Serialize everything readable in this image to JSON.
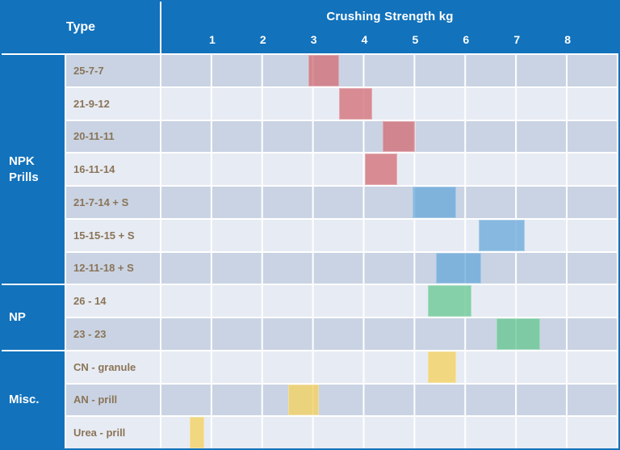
{
  "header": {
    "type_label": "Type",
    "axis_title": "Crushing Strength kg"
  },
  "colors": {
    "header_bg": "#1272BC",
    "header_text": "#FFFFFF",
    "outer_border": "#1272BC",
    "row_dark": "#C9D3E3",
    "row_light": "#E7EBF3",
    "grid_line": "#FFFFFF",
    "row_label_text": "#8A7458",
    "bar_red": "rgba(211,111,119,0.78)",
    "bar_blue": "rgba(108,171,218,0.78)",
    "bar_green": "rgba(105,200,148,0.78)",
    "bar_yellow": "rgba(243,210,103,0.82)"
  },
  "chart_data": {
    "type": "bar",
    "subtype": "horizontal-range-bars",
    "title": "Crushing Strength kg",
    "xlabel": "Crushing Strength kg",
    "ylabel": "Type",
    "x_range": [
      0,
      9
    ],
    "x_ticks": [
      "1",
      "2",
      "3",
      "4",
      "5",
      "6",
      "7",
      "8"
    ],
    "grid": true,
    "groups": [
      {
        "label": "NPK Prills",
        "rows": [
          {
            "label": "25-7-7",
            "range_kg": [
              2.9,
              3.5
            ],
            "color": "red"
          },
          {
            "label": "21-9-12",
            "range_kg": [
              3.5,
              4.15
            ],
            "color": "red"
          },
          {
            "label": "20-11-11",
            "range_kg": [
              4.35,
              5.0
            ],
            "color": "red"
          },
          {
            "label": "16-11-14",
            "range_kg": [
              4.0,
              4.65
            ],
            "color": "red"
          },
          {
            "label": "21-7-14 + S",
            "range_kg": [
              4.95,
              5.8
            ],
            "color": "blue"
          },
          {
            "label": "15-15-15 + S",
            "range_kg": [
              6.25,
              7.15
            ],
            "color": "blue"
          },
          {
            "label": "12-11-18 + S",
            "range_kg": [
              5.4,
              6.3
            ],
            "color": "blue"
          }
        ]
      },
      {
        "label": "NP",
        "rows": [
          {
            "label": "26 - 14",
            "range_kg": [
              5.25,
              6.1
            ],
            "color": "green"
          },
          {
            "label": "23 - 23",
            "range_kg": [
              6.6,
              7.45
            ],
            "color": "green"
          }
        ]
      },
      {
        "label": "Misc.",
        "rows": [
          {
            "label": "CN - granule",
            "range_kg": [
              5.25,
              5.8
            ],
            "color": "yellow"
          },
          {
            "label": "AN - prill",
            "range_kg": [
              2.5,
              3.1
            ],
            "color": "yellow"
          },
          {
            "label": "Urea - prill",
            "range_kg": [
              0.55,
              0.85
            ],
            "color": "yellow"
          }
        ]
      }
    ]
  }
}
